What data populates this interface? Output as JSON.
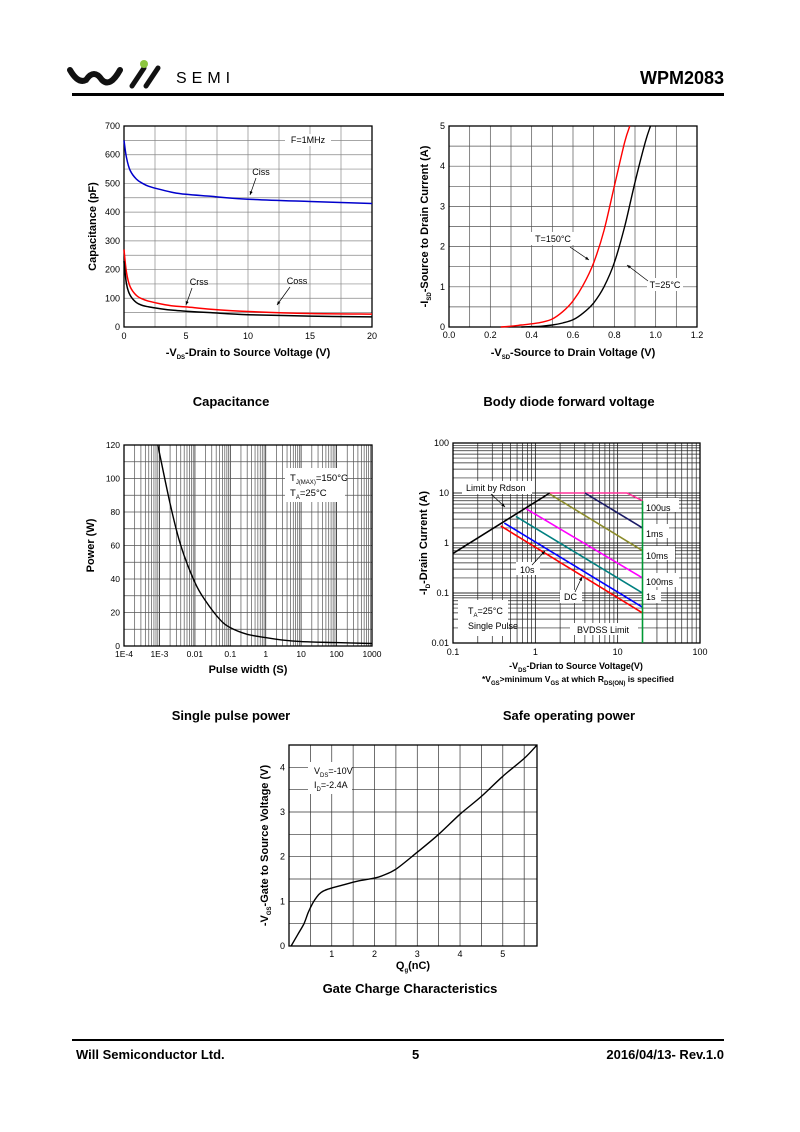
{
  "header": {
    "brand": "SEMI",
    "part_number": "WPM2083",
    "logo_dot_color": "#8dc63f"
  },
  "footer": {
    "company": "Will Semiconductor Ltd.",
    "page": "5",
    "revision": "2016/04/13- Rev.1.0"
  },
  "chart_data": [
    {
      "type": "line",
      "caption": "Capacitance",
      "xlabel": "-V",
      "xlabel_sub": "DS",
      "xlabel_rest": "-Drain to Source Voltage (V)",
      "ylabel": "Capacitance (pF)",
      "xlim": [
        0,
        20
      ],
      "ylim": [
        0,
        700
      ],
      "xticks": [
        "0",
        "5",
        "10",
        "15",
        "20"
      ],
      "yticks": [
        "0",
        "100",
        "200",
        "300",
        "400",
        "500",
        "600",
        "700"
      ],
      "annotation": "F=1MHz",
      "series": [
        {
          "name": "Ciss",
          "color": "#0000cc",
          "x": [
            0,
            0.2,
            0.5,
            1,
            1.5,
            2,
            3,
            4,
            5,
            7,
            10,
            15,
            20
          ],
          "y": [
            650,
            590,
            545,
            515,
            500,
            490,
            478,
            468,
            462,
            455,
            445,
            437,
            430
          ]
        },
        {
          "name": "Coss",
          "color": "#ff0000",
          "x": [
            0,
            0.2,
            0.5,
            1,
            1.5,
            2,
            3,
            4,
            5,
            7,
            10,
            15,
            20
          ],
          "y": [
            270,
            190,
            140,
            110,
            97,
            90,
            80,
            73,
            70,
            62,
            54,
            47,
            45
          ]
        },
        {
          "name": "Crss",
          "color": "#000000",
          "x": [
            0,
            0.2,
            0.5,
            1,
            1.5,
            2,
            3,
            4,
            5,
            7,
            10,
            15,
            20
          ],
          "y": [
            230,
            150,
            110,
            85,
            75,
            70,
            63,
            58,
            55,
            50,
            43,
            38,
            35
          ]
        }
      ]
    },
    {
      "type": "line",
      "caption": "Body diode forward voltage",
      "xlabel": "-V",
      "xlabel_sub": "SD",
      "xlabel_rest": "-Source to Drain Voltage (V)",
      "ylabel": "-I",
      "ylabel_sub": "SD",
      "ylabel_rest": "-Source to Drain Current (A)",
      "xlim": [
        0,
        1.2
      ],
      "ylim": [
        0,
        5
      ],
      "xticks": [
        "0.0",
        "0.2",
        "0.4",
        "0.6",
        "0.8",
        "1.0",
        "1.2"
      ],
      "yticks": [
        "0",
        "1",
        "2",
        "3",
        "4",
        "5"
      ],
      "series": [
        {
          "name": "T=150°C",
          "color": "#ff0000",
          "x": [
            0.25,
            0.3,
            0.35,
            0.4,
            0.45,
            0.5,
            0.55,
            0.6,
            0.65,
            0.7,
            0.75,
            0.8,
            0.85,
            0.875
          ],
          "y": [
            0,
            0.02,
            0.05,
            0.08,
            0.12,
            0.2,
            0.38,
            0.65,
            1.05,
            1.6,
            2.4,
            3.5,
            4.6,
            5
          ]
        },
        {
          "name": "T=25°C",
          "color": "#000000",
          "x": [
            0.35,
            0.4,
            0.45,
            0.5,
            0.55,
            0.6,
            0.65,
            0.7,
            0.75,
            0.8,
            0.85,
            0.9,
            0.95,
            0.975
          ],
          "y": [
            0,
            0.01,
            0.02,
            0.05,
            0.1,
            0.18,
            0.35,
            0.6,
            1.0,
            1.6,
            2.5,
            3.6,
            4.6,
            5
          ]
        }
      ]
    },
    {
      "type": "line",
      "caption": "Single pulse power",
      "xlabel": "Pulse width (S)",
      "ylabel": "Power (W)",
      "xscale": "log",
      "xlim": [
        0.0001,
        1000
      ],
      "ylim": [
        0,
        120
      ],
      "xticks": [
        "1E-4",
        "1E-3",
        "0.01",
        "0.1",
        "1",
        "10",
        "100",
        "1000"
      ],
      "yticks": [
        "0",
        "20",
        "40",
        "60",
        "80",
        "100",
        "120"
      ],
      "annotations": [
        "T",
        "J(MAX)",
        "=150°C",
        "T",
        "A",
        "=25°C"
      ],
      "series": [
        {
          "name": "Power",
          "color": "#000000",
          "x": [
            0.0009,
            0.002,
            0.004,
            0.01,
            0.02,
            0.05,
            0.1,
            0.3,
            1,
            3,
            10,
            100,
            1000
          ],
          "y": [
            120,
            85,
            60,
            38,
            27,
            16,
            11,
            7,
            5,
            3.5,
            2.6,
            2,
            1.5
          ]
        }
      ]
    },
    {
      "type": "line",
      "caption": "Safe operating power",
      "xlabel": "-V",
      "xlabel_sub": "DS",
      "xlabel_rest": "-Drian to Source Voltage(V)",
      "note": [
        "*V",
        "GS",
        ">minimum V",
        "GS",
        " at which R",
        "DS(ON)",
        " is specified"
      ],
      "ylabel": "-I",
      "ylabel_sub": "D",
      "ylabel_rest": "-Drain Current (A)",
      "xscale": "log",
      "yscale": "log",
      "xlim": [
        0.1,
        100
      ],
      "ylim": [
        0.01,
        100
      ],
      "xticks": [
        "0.1",
        "1",
        "10",
        "100"
      ],
      "yticks": [
        "0.01",
        "0.1",
        "1",
        "10",
        "100"
      ],
      "labels": {
        "rdson": "Limit by Rdson",
        "ta": "T",
        "ta_sub": "A",
        "ta_rest": "=25°C",
        "pulse": "Single Pulse",
        "bvdss": "BVDSS Limit"
      },
      "series": [
        {
          "name": "Limit by Rdson",
          "color": "#000000",
          "x": [
            0.1,
            1.5
          ],
          "y": [
            0.62,
            10
          ]
        },
        {
          "name": "100us",
          "color": "#ff3399",
          "x": [
            1.5,
            13,
            20
          ],
          "y": [
            10,
            10,
            7
          ]
        },
        {
          "name": "1ms",
          "color": "#1a1a66",
          "x": [
            4,
            20
          ],
          "y": [
            10,
            2
          ]
        },
        {
          "name": "10ms",
          "color": "#8b8b2a",
          "x": [
            1.5,
            20
          ],
          "y": [
            9.5,
            0.7
          ]
        },
        {
          "name": "100ms",
          "color": "#ff00ff",
          "x": [
            0.78,
            20
          ],
          "y": [
            4.8,
            0.2
          ]
        },
        {
          "name": "1s",
          "color": "#008080",
          "x": [
            0.58,
            20
          ],
          "y": [
            3.4,
            0.1
          ]
        },
        {
          "name": "10s",
          "color": "#0000ff",
          "x": [
            0.42,
            20
          ],
          "y": [
            2.5,
            0.052
          ]
        },
        {
          "name": "DC",
          "color": "#ff0000",
          "x": [
            0.38,
            20
          ],
          "y": [
            2.2,
            0.04
          ]
        },
        {
          "name": "BVDSS Limit",
          "color": "#009933",
          "x": [
            20,
            20
          ],
          "y": [
            0.01,
            7
          ]
        }
      ]
    },
    {
      "type": "line",
      "caption": "Gate Charge Characteristics",
      "xlabel": "Q",
      "xlabel_sub": "g",
      "xlabel_rest": "(nC)",
      "ylabel": "-V",
      "ylabel_sub": "GS",
      "ylabel_rest": "-Gate to Source Voltage (V)",
      "xlim": [
        0,
        5.8
      ],
      "ylim": [
        0,
        4.5
      ],
      "xticks": [
        "1",
        "2",
        "3",
        "4",
        "5"
      ],
      "yticks": [
        "0",
        "1",
        "2",
        "3",
        "4"
      ],
      "annotations": [
        "V",
        "DS",
        "=-10V",
        "I",
        "D",
        "=-2.4A"
      ],
      "series": [
        {
          "name": "Vgs",
          "color": "#000000",
          "x": [
            0.05,
            0.2,
            0.35,
            0.45,
            0.55,
            0.65,
            0.75,
            0.9,
            1.2,
            1.6,
            2.0,
            2.2,
            2.5,
            3.0,
            3.5,
            4.0,
            4.5,
            5.0,
            5.5,
            5.8
          ],
          "y": [
            0,
            0.25,
            0.5,
            0.75,
            0.95,
            1.1,
            1.2,
            1.27,
            1.35,
            1.45,
            1.52,
            1.58,
            1.72,
            2.1,
            2.5,
            2.95,
            3.35,
            3.8,
            4.2,
            4.5
          ]
        }
      ]
    }
  ]
}
